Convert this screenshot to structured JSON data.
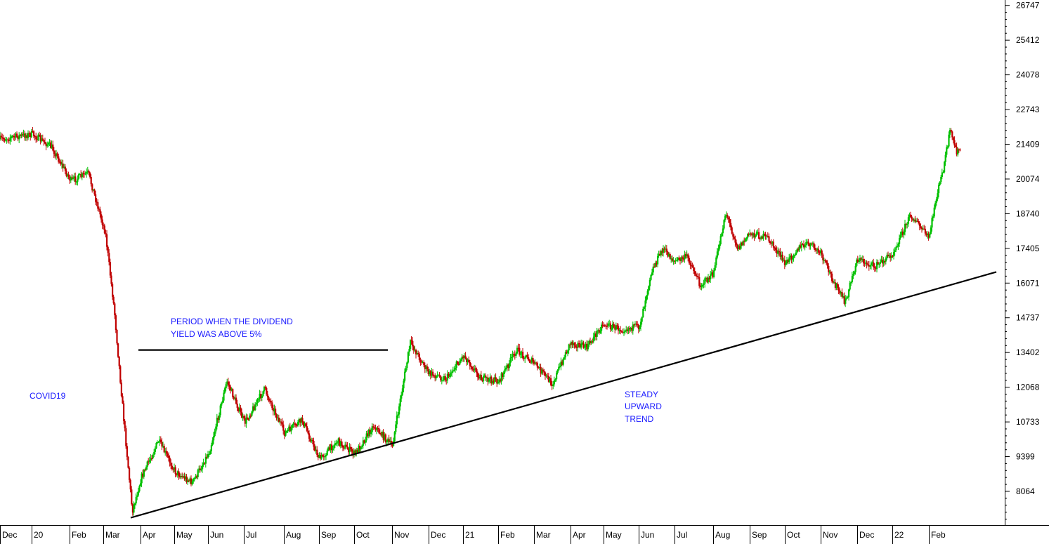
{
  "chart_data": {
    "type": "candlestick",
    "title": "",
    "xlabel": "",
    "ylabel": "",
    "ylim": [
      6800,
      27200
    ],
    "y_ticks": [
      8064,
      9399,
      10733,
      12068,
      13402,
      14737,
      16071,
      17405,
      18740,
      20074,
      21409,
      22743,
      24078,
      25412,
      26747
    ],
    "x_ticks": [
      "Dec",
      "20",
      "Feb",
      "Mar",
      "Apr",
      "May",
      "Jun",
      "Jul",
      "Aug",
      "Sep",
      "Oct",
      "Nov",
      "Dec",
      "21",
      "Feb",
      "Mar",
      "Apr",
      "May",
      "Jun",
      "Jul",
      "Aug",
      "Sep",
      "Oct",
      "Nov",
      "Dec",
      "22",
      "Feb"
    ],
    "up_color": "#00c000",
    "down_color": "#c00000",
    "grid": false,
    "price_path": [
      {
        "date": "Dec 2019",
        "value": 21600
      },
      {
        "date": "Jan 2020",
        "value": 21800
      },
      {
        "date": "Jan 2020",
        "value": 21300
      },
      {
        "date": "Feb 2020",
        "value": 20000
      },
      {
        "date": "Feb 2020",
        "value": 20300
      },
      {
        "date": "Mar 2020",
        "value": 18000
      },
      {
        "date": "Mar 2020",
        "value": 15000
      },
      {
        "date": "Mar 2020",
        "value": 11000
      },
      {
        "date": "Mar 2020",
        "value": 7300
      },
      {
        "date": "Apr 2020",
        "value": 8600
      },
      {
        "date": "Apr 2020",
        "value": 10000
      },
      {
        "date": "May 2020",
        "value": 8800
      },
      {
        "date": "May 2020",
        "value": 8400
      },
      {
        "date": "Jun 2020",
        "value": 9600
      },
      {
        "date": "Jun 2020",
        "value": 12300
      },
      {
        "date": "Jul 2020",
        "value": 10700
      },
      {
        "date": "Jul 2020",
        "value": 12000
      },
      {
        "date": "Aug 2020",
        "value": 10300
      },
      {
        "date": "Aug 2020",
        "value": 10800
      },
      {
        "date": "Sep 2020",
        "value": 9300
      },
      {
        "date": "Sep 2020",
        "value": 10000
      },
      {
        "date": "Oct 2020",
        "value": 9500
      },
      {
        "date": "Oct 2020",
        "value": 10600
      },
      {
        "date": "Nov 2020",
        "value": 9800
      },
      {
        "date": "Nov 2020",
        "value": 13800
      },
      {
        "date": "Dec 2020",
        "value": 12600
      },
      {
        "date": "Dec 2020",
        "value": 12400
      },
      {
        "date": "Jan 2021",
        "value": 13300
      },
      {
        "date": "Jan 2021",
        "value": 12400
      },
      {
        "date": "Feb 2021",
        "value": 12300
      },
      {
        "date": "Feb 2021",
        "value": 13500
      },
      {
        "date": "Mar 2021",
        "value": 13000
      },
      {
        "date": "Mar 2021",
        "value": 12200
      },
      {
        "date": "Apr 2021",
        "value": 13800
      },
      {
        "date": "Apr 2021",
        "value": 13600
      },
      {
        "date": "May 2021",
        "value": 14500
      },
      {
        "date": "May 2021",
        "value": 14300
      },
      {
        "date": "Jun 2021",
        "value": 14400
      },
      {
        "date": "Jun 2021",
        "value": 16500
      },
      {
        "date": "Jun 2021",
        "value": 17400
      },
      {
        "date": "Jul 2021",
        "value": 16900
      },
      {
        "date": "Jul 2021",
        "value": 17100
      },
      {
        "date": "Jul 2021",
        "value": 16000
      },
      {
        "date": "Aug 2021",
        "value": 16400
      },
      {
        "date": "Aug 2021",
        "value": 18800
      },
      {
        "date": "Aug 2021",
        "value": 17400
      },
      {
        "date": "Sep 2021",
        "value": 18000
      },
      {
        "date": "Sep 2021",
        "value": 17800
      },
      {
        "date": "Oct 2021",
        "value": 16800
      },
      {
        "date": "Oct 2021",
        "value": 17400
      },
      {
        "date": "Oct 2021",
        "value": 17600
      },
      {
        "date": "Nov 2021",
        "value": 17200
      },
      {
        "date": "Nov 2021",
        "value": 16200
      },
      {
        "date": "Nov 2021",
        "value": 15300
      },
      {
        "date": "Dec 2021",
        "value": 17000
      },
      {
        "date": "Dec 2021",
        "value": 16700
      },
      {
        "date": "Jan 2022",
        "value": 17200
      },
      {
        "date": "Jan 2022",
        "value": 18700
      },
      {
        "date": "Feb 2022",
        "value": 17800
      },
      {
        "date": "Feb 2022",
        "value": 19300
      },
      {
        "date": "Feb 2022",
        "value": 20400
      },
      {
        "date": "Feb 2022",
        "value": 21900
      },
      {
        "date": "Mar 2022",
        "value": 21100
      },
      {
        "date": "Mar 2022",
        "value": 21200
      }
    ],
    "trendlines": [
      {
        "from": {
          "date": "Mar 2020",
          "value": 7050
        },
        "to": {
          "date": "Mar 2022",
          "value": 16500
        }
      },
      {
        "from": {
          "date": "Apr 2020",
          "value": 13500
        },
        "to": {
          "date": "Nov 2020",
          "value": 13500
        }
      }
    ],
    "annotations": [
      {
        "text": "COVID19"
      },
      {
        "text": "PERIOD WHEN THE DIVIDEND"
      },
      {
        "text": "YIELD WAS ABOVE 5%"
      },
      {
        "text": "STEADY"
      },
      {
        "text": "UPWARD"
      },
      {
        "text": "TREND"
      }
    ]
  }
}
